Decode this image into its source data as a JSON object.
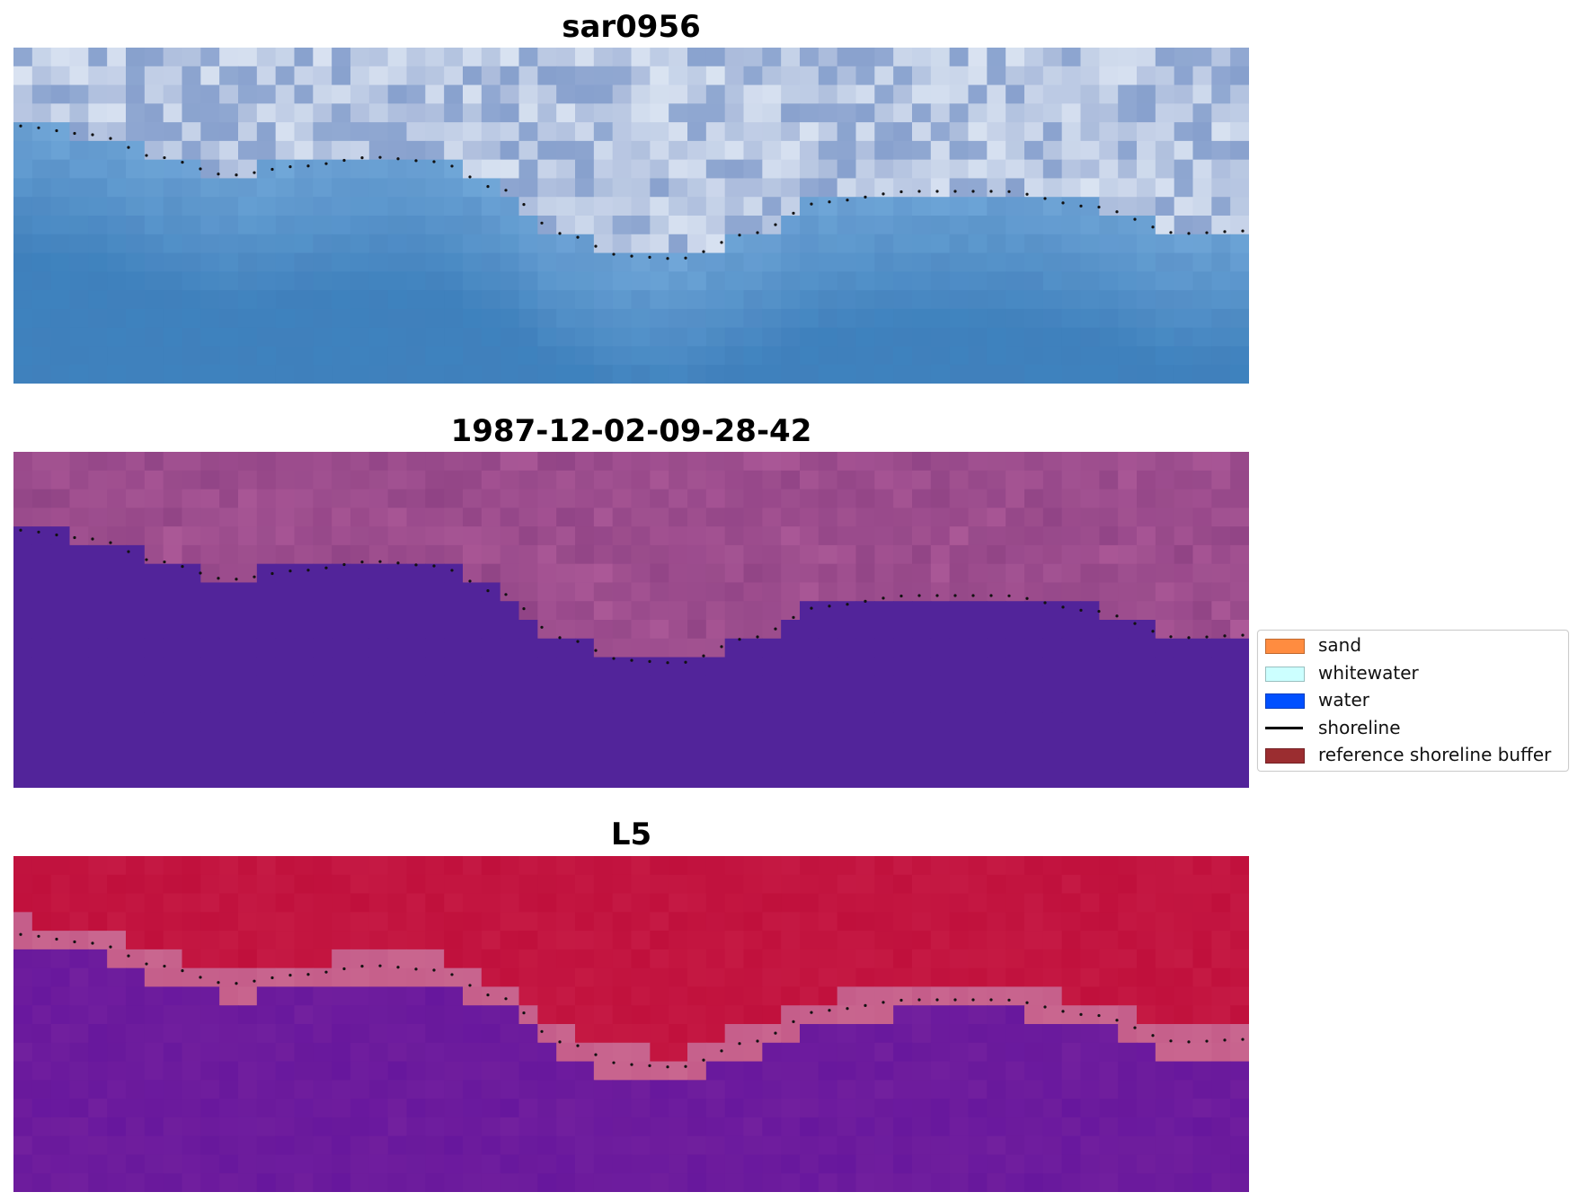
{
  "panels": [
    {
      "title": "sar0956",
      "kind": "rgb"
    },
    {
      "title": "1987-12-02-09-28-42",
      "kind": "classified"
    },
    {
      "title": "L5",
      "kind": "index"
    }
  ],
  "legend": {
    "items": [
      {
        "label": "sand",
        "color": "#ff8c40",
        "kind": "patch"
      },
      {
        "label": "whitewater",
        "color": "#ccffff",
        "kind": "patch"
      },
      {
        "label": "water",
        "color": "#0050ff",
        "kind": "patch"
      },
      {
        "label": "shoreline",
        "color": "#000000",
        "kind": "line"
      },
      {
        "label": "reference shoreline buffer",
        "color": "#9b2d30",
        "kind": "patch"
      }
    ]
  },
  "colors": {
    "classified_water": "#52249a",
    "classified_land": "#9a4a8c",
    "index_land": "#c0103c",
    "index_water": "#6a1a9c",
    "index_buffer": "#c9668f"
  }
}
